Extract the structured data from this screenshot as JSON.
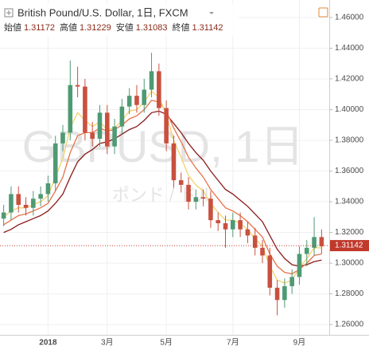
{
  "chart_data": {
    "type": "candlestick",
    "title": "British Pound/U.S. Dollar, 1日, FXCM",
    "ohlc_legend": [
      {
        "label": "始値",
        "value": 1.31172
      },
      {
        "label": "高値",
        "value": 1.31229
      },
      {
        "label": "安値",
        "value": 1.31083
      },
      {
        "label": "終値",
        "value": 1.31142
      }
    ],
    "watermark": "GBPUSD, 1日",
    "watermark_sub": "ポンド / ドル",
    "categories": [
      null,
      null,
      null,
      null,
      null,
      null,
      "2018",
      null,
      null,
      null,
      null,
      null,
      null,
      null,
      "3月",
      null,
      null,
      null,
      null,
      null,
      null,
      null,
      "5月",
      null,
      null,
      null,
      null,
      null,
      null,
      null,
      null,
      "7月",
      null,
      null,
      null,
      null,
      null,
      null,
      null,
      null,
      "9月",
      null,
      null,
      null
    ],
    "open": [
      1.329,
      1.333,
      1.345,
      1.338,
      1.336,
      1.342,
      1.345,
      1.352,
      1.378,
      1.385,
      1.416,
      1.415,
      1.385,
      1.381,
      1.398,
      1.376,
      1.389,
      1.402,
      1.409,
      1.403,
      1.413,
      1.425,
      1.401,
      1.378,
      1.354,
      1.351,
      1.34,
      1.343,
      1.342,
      1.328,
      1.326,
      1.322,
      1.328,
      1.322,
      1.318,
      1.31,
      1.305,
      1.284,
      1.276,
      1.285,
      1.291,
      1.306,
      1.31,
      1.317
    ],
    "high": [
      1.338,
      1.35,
      1.35,
      1.343,
      1.347,
      1.35,
      1.357,
      1.383,
      1.39,
      1.432,
      1.428,
      1.42,
      1.392,
      1.403,
      1.403,
      1.394,
      1.407,
      1.414,
      1.416,
      1.42,
      1.437,
      1.43,
      1.406,
      1.383,
      1.359,
      1.356,
      1.348,
      1.348,
      1.347,
      1.333,
      1.331,
      1.333,
      1.333,
      1.327,
      1.323,
      1.315,
      1.31,
      1.289,
      1.29,
      1.296,
      1.311,
      1.315,
      1.33,
      1.322
    ],
    "low": [
      1.324,
      1.328,
      1.333,
      1.331,
      1.331,
      1.337,
      1.34,
      1.347,
      1.373,
      1.38,
      1.408,
      1.38,
      1.376,
      1.376,
      1.371,
      1.371,
      1.384,
      1.397,
      1.398,
      1.398,
      1.408,
      1.396,
      1.373,
      1.349,
      1.346,
      1.335,
      1.335,
      1.337,
      1.323,
      1.321,
      1.31,
      1.317,
      1.317,
      1.313,
      1.305,
      1.3,
      1.279,
      1.266,
      1.271,
      1.28,
      1.286,
      1.298,
      1.305,
      1.306
    ],
    "close": [
      1.333,
      1.345,
      1.338,
      1.336,
      1.342,
      1.345,
      1.352,
      1.378,
      1.385,
      1.416,
      1.415,
      1.385,
      1.381,
      1.398,
      1.376,
      1.389,
      1.402,
      1.409,
      1.403,
      1.413,
      1.425,
      1.401,
      1.378,
      1.354,
      1.351,
      1.34,
      1.343,
      1.342,
      1.328,
      1.326,
      1.322,
      1.328,
      1.322,
      1.318,
      1.31,
      1.305,
      1.284,
      1.276,
      1.285,
      1.291,
      1.306,
      1.31,
      1.317,
      1.311
    ],
    "up_color": "#4e9a74",
    "down_color": "#c9503f",
    "series": [
      {
        "color": "#8b1a1a",
        "values": [
          1.32,
          1.322,
          1.325,
          1.327,
          1.329,
          1.331,
          1.334,
          1.339,
          1.345,
          1.356,
          1.366,
          1.371,
          1.374,
          1.378,
          1.379,
          1.381,
          1.384,
          1.387,
          1.389,
          1.393,
          1.398,
          1.399,
          1.397,
          1.391,
          1.385,
          1.378,
          1.372,
          1.367,
          1.36,
          1.354,
          1.348,
          1.345,
          1.341,
          1.337,
          1.332,
          1.327,
          1.318,
          1.309,
          1.303,
          1.299,
          1.298,
          1.299,
          1.301,
          1.302
        ]
      },
      {
        "color": "#e8734a",
        "values": [
          1.325,
          1.328,
          1.331,
          1.332,
          1.334,
          1.336,
          1.339,
          1.347,
          1.356,
          1.372,
          1.383,
          1.385,
          1.385,
          1.388,
          1.386,
          1.387,
          1.39,
          1.394,
          1.396,
          1.4,
          1.406,
          1.405,
          1.399,
          1.388,
          1.379,
          1.369,
          1.362,
          1.356,
          1.348,
          1.342,
          1.336,
          1.334,
          1.331,
          1.327,
          1.322,
          1.317,
          1.306,
          1.298,
          1.294,
          1.293,
          1.296,
          1.3,
          1.305,
          1.306
        ]
      },
      {
        "color": "#f5d36b",
        "values": [
          1.33,
          1.334,
          1.336,
          1.336,
          1.338,
          1.34,
          1.344,
          1.356,
          1.368,
          1.388,
          1.398,
          1.393,
          1.389,
          1.392,
          1.387,
          1.388,
          1.393,
          1.399,
          1.4,
          1.405,
          1.412,
          1.408,
          1.397,
          1.38,
          1.369,
          1.357,
          1.351,
          1.347,
          1.339,
          1.333,
          1.328,
          1.328,
          1.326,
          1.322,
          1.316,
          1.311,
          1.298,
          1.289,
          1.287,
          1.289,
          1.297,
          1.303,
          1.31,
          1.31
        ]
      }
    ],
    "last_price": 1.31142,
    "last_price_color": "#c0392b",
    "ylim": [
      1.2533,
      1.4714
    ],
    "yticks": [
      {
        "value": 1.26,
        "label": "1.26000"
      },
      {
        "value": 1.28,
        "label": "1.28000"
      },
      {
        "value": 1.3,
        "label": "1.30000"
      },
      {
        "value": 1.32,
        "label": "1.32000"
      },
      {
        "value": 1.34,
        "label": "1.34000"
      },
      {
        "value": 1.36,
        "label": "1.36000"
      },
      {
        "value": 1.38,
        "label": "1.38000"
      },
      {
        "value": 1.4,
        "label": "1.40000"
      },
      {
        "value": 1.42,
        "label": "1.42000"
      },
      {
        "value": 1.44,
        "label": "1.44000"
      },
      {
        "value": 1.46,
        "label": "1.46000"
      }
    ],
    "grid": true
  }
}
